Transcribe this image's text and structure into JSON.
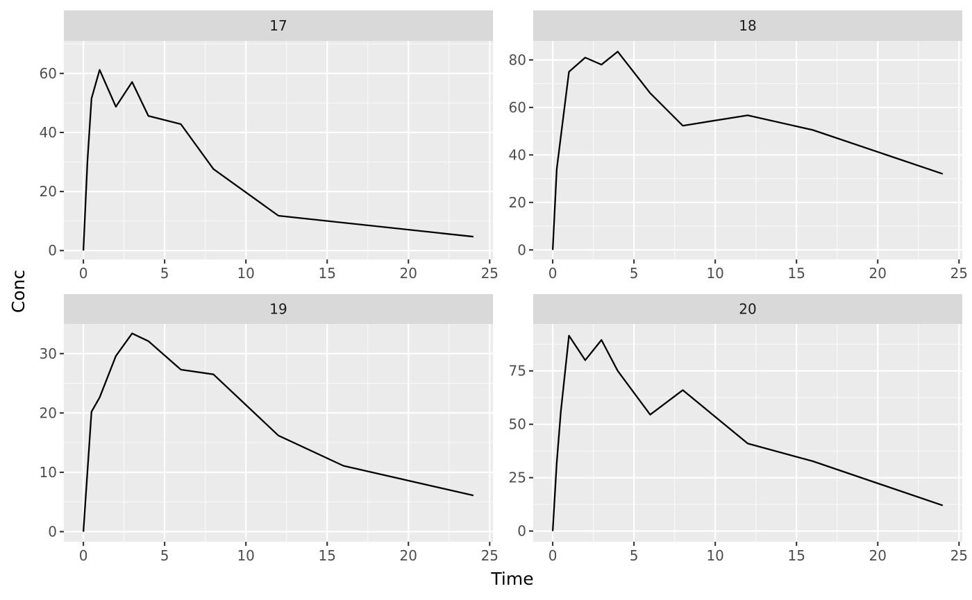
{
  "chart_data": {
    "type": "line",
    "xlabel": "Time",
    "ylabel": "Conc",
    "facets": [
      {
        "label": "17",
        "xlim": [
          -1.2,
          25.2
        ],
        "ylim": [
          -3,
          71
        ],
        "x_breaks": [
          0,
          5,
          10,
          15,
          20,
          25
        ],
        "y_breaks": [
          0,
          20,
          40,
          60
        ],
        "x": [
          0,
          0.25,
          0.5,
          1,
          2,
          3,
          4,
          6,
          8,
          12,
          24
        ],
        "y": [
          0,
          30,
          51.5,
          61.2,
          48.7,
          57.1,
          45.6,
          42.8,
          27.6,
          11.8,
          4.7
        ]
      },
      {
        "label": "18",
        "xlim": [
          -1.2,
          25.2
        ],
        "ylim": [
          -4,
          88
        ],
        "x_breaks": [
          0,
          5,
          10,
          15,
          20,
          25
        ],
        "y_breaks": [
          0,
          20,
          40,
          60,
          80
        ],
        "x": [
          0,
          0.25,
          1,
          2,
          3,
          4,
          6,
          8,
          12,
          16,
          24
        ],
        "y": [
          0,
          34,
          75,
          81,
          78,
          83.5,
          66,
          52.3,
          56.7,
          50.5,
          32
        ]
      },
      {
        "label": "19",
        "xlim": [
          -1.2,
          25.2
        ],
        "ylim": [
          -1.7,
          35
        ],
        "x_breaks": [
          0,
          5,
          10,
          15,
          20,
          25
        ],
        "y_breaks": [
          0,
          10,
          20,
          30
        ],
        "x": [
          0,
          0.5,
          1,
          2,
          3,
          4,
          6,
          8,
          12,
          16,
          24
        ],
        "y": [
          0,
          20.2,
          22.6,
          29.6,
          33.4,
          32.1,
          27.3,
          26.5,
          16.2,
          11.1,
          6.1
        ]
      },
      {
        "label": "20",
        "xlim": [
          -1.2,
          25.2
        ],
        "ylim": [
          -5,
          97
        ],
        "x_breaks": [
          0,
          5,
          10,
          15,
          20,
          25
        ],
        "y_breaks": [
          0,
          25,
          50,
          75
        ],
        "x": [
          0,
          0.25,
          0.5,
          1,
          2,
          3,
          4,
          6,
          8,
          12,
          16,
          24
        ],
        "y": [
          0,
          32,
          56,
          91.5,
          80,
          89.5,
          75,
          54.5,
          66,
          41,
          32.7,
          12
        ]
      }
    ]
  }
}
